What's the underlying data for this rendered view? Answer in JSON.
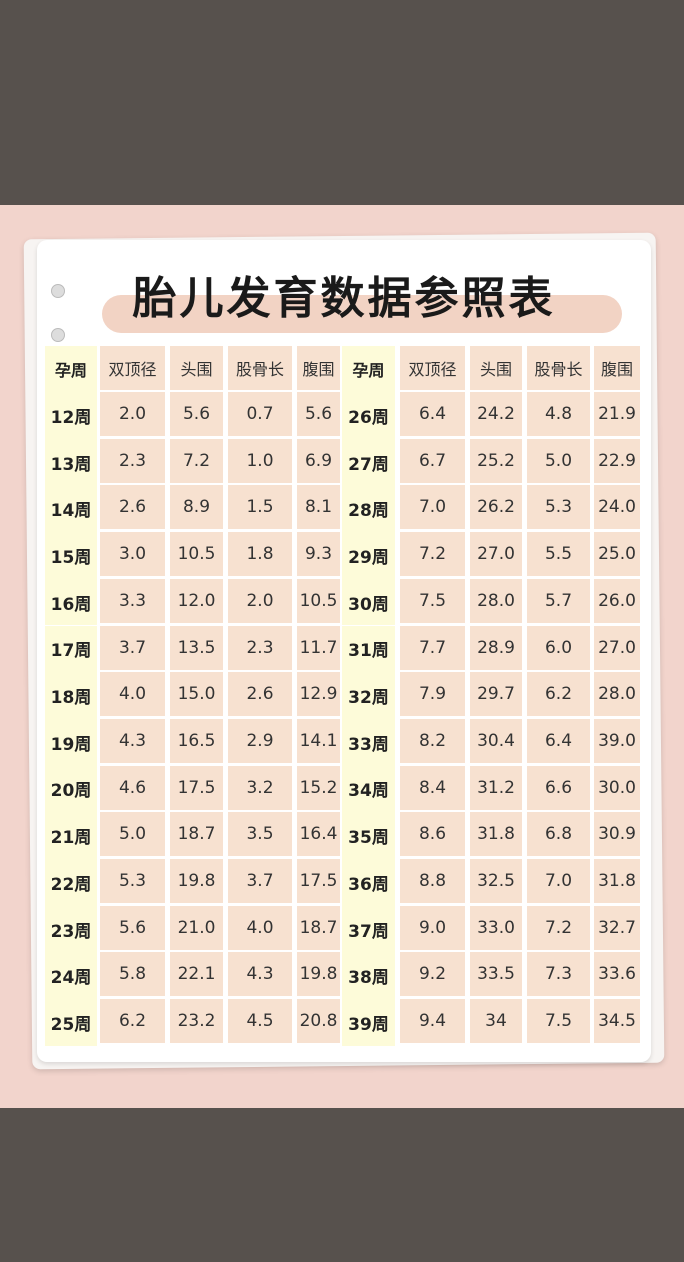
{
  "title": "胎儿发育数据参照表",
  "colors": {
    "card": "#ffffff",
    "cell": "#f7e1d0",
    "week_col": "#fdfbd9",
    "background": "#f2d4cc"
  },
  "table": {
    "headers": [
      "孕周",
      "双顶径",
      "头围",
      "股骨长",
      "腹围",
      "孕周",
      "双顶径",
      "头围",
      "股骨长",
      "腹围"
    ],
    "rows": [
      [
        "12周",
        "2.0",
        "5.6",
        "0.7",
        "5.6",
        "26周",
        "6.4",
        "24.2",
        "4.8",
        "21.9"
      ],
      [
        "13周",
        "2.3",
        "7.2",
        "1.0",
        "6.9",
        "27周",
        "6.7",
        "25.2",
        "5.0",
        "22.9"
      ],
      [
        "14周",
        "2.6",
        "8.9",
        "1.5",
        "8.1",
        "28周",
        "7.0",
        "26.2",
        "5.3",
        "24.0"
      ],
      [
        "15周",
        "3.0",
        "10.5",
        "1.8",
        "9.3",
        "29周",
        "7.2",
        "27.0",
        "5.5",
        "25.0"
      ],
      [
        "16周",
        "3.3",
        "12.0",
        "2.0",
        "10.5",
        "30周",
        "7.5",
        "28.0",
        "5.7",
        "26.0"
      ],
      [
        "17周",
        "3.7",
        "13.5",
        "2.3",
        "11.7",
        "31周",
        "7.7",
        "28.9",
        "6.0",
        "27.0"
      ],
      [
        "18周",
        "4.0",
        "15.0",
        "2.6",
        "12.9",
        "32周",
        "7.9",
        "29.7",
        "6.2",
        "28.0"
      ],
      [
        "19周",
        "4.3",
        "16.5",
        "2.9",
        "14.1",
        "33周",
        "8.2",
        "30.4",
        "6.4",
        "39.0"
      ],
      [
        "20周",
        "4.6",
        "17.5",
        "3.2",
        "15.2",
        "34周",
        "8.4",
        "31.2",
        "6.6",
        "30.0"
      ],
      [
        "21周",
        "5.0",
        "18.7",
        "3.5",
        "16.4",
        "35周",
        "8.6",
        "31.8",
        "6.8",
        "30.9"
      ],
      [
        "22周",
        "5.3",
        "19.8",
        "3.7",
        "17.5",
        "36周",
        "8.8",
        "32.5",
        "7.0",
        "31.8"
      ],
      [
        "23周",
        "5.6",
        "21.0",
        "4.0",
        "18.7",
        "37周",
        "9.0",
        "33.0",
        "7.2",
        "32.7"
      ],
      [
        "24周",
        "5.8",
        "22.1",
        "4.3",
        "19.8",
        "38周",
        "9.2",
        "33.5",
        "7.3",
        "33.6"
      ],
      [
        "25周",
        "6.2",
        "23.2",
        "4.5",
        "20.8",
        "39周",
        "9.4",
        "34",
        "7.5",
        "34.5"
      ]
    ]
  }
}
